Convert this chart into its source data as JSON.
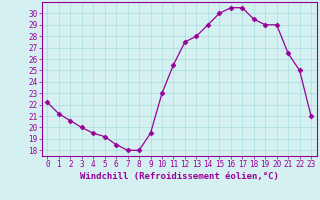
{
  "x": [
    0,
    1,
    2,
    3,
    4,
    5,
    6,
    7,
    8,
    9,
    10,
    11,
    12,
    13,
    14,
    15,
    16,
    17,
    18,
    19,
    20,
    21,
    22,
    23
  ],
  "y": [
    22.2,
    21.2,
    20.6,
    20.0,
    19.5,
    19.2,
    18.5,
    18.0,
    18.0,
    19.5,
    23.0,
    25.5,
    27.5,
    28.0,
    29.0,
    30.0,
    30.5,
    30.5,
    29.5,
    29.0,
    29.0,
    26.5,
    25.0,
    21.0
  ],
  "line_color": "#990099",
  "marker": "D",
  "marker_size": 2.5,
  "bg_color": "#d4f0f0",
  "grid_color": "#aadddd",
  "xlabel": "Windchill (Refroidissement éolien,°C)",
  "xlabel_color": "#990099",
  "tick_color": "#990099",
  "ylim": [
    17.5,
    31.0
  ],
  "yticks": [
    18,
    19,
    20,
    21,
    22,
    23,
    24,
    25,
    26,
    27,
    28,
    29,
    30
  ],
  "xticks": [
    0,
    1,
    2,
    3,
    4,
    5,
    6,
    7,
    8,
    9,
    10,
    11,
    12,
    13,
    14,
    15,
    16,
    17,
    18,
    19,
    20,
    21,
    22,
    23
  ],
  "spine_color": "#990099",
  "xlabel_fontsize": 6.5,
  "tick_fontsize": 5.5
}
